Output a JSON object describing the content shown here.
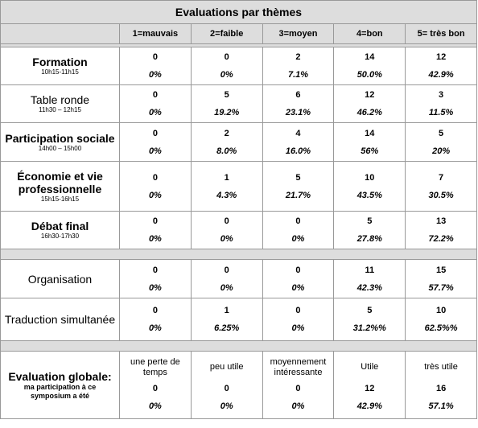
{
  "table": {
    "title": "Evaluations par thèmes",
    "columns": [
      "1=mauvais",
      "2=faible",
      "3=moyen",
      "4=bon",
      "5= très bon"
    ],
    "sessions": [
      {
        "label": "Formation",
        "time": "10h15-11h15",
        "counts": [
          0,
          0,
          2,
          14,
          12
        ],
        "percents": [
          "0%",
          "0%",
          "7.1%",
          "50.0%",
          "42.9%"
        ]
      },
      {
        "label": "Table ronde",
        "time": "11h30 – 12h15",
        "counts": [
          0,
          5,
          6,
          12,
          3
        ],
        "percents": [
          "0%",
          "19.2%",
          "23.1%",
          "46.2%",
          "11.5%"
        ]
      },
      {
        "label": "Participation sociale",
        "time": "14h00 – 15h00",
        "counts": [
          0,
          2,
          4,
          14,
          5
        ],
        "percents": [
          "0%",
          "8.0%",
          "16.0%",
          "56%",
          "20%"
        ]
      },
      {
        "label": "Économie et vie professionnelle",
        "time": "15h15-16h15",
        "counts": [
          0,
          1,
          5,
          10,
          7
        ],
        "percents": [
          "0%",
          "4.3%",
          "21.7%",
          "43.5%",
          "30.5%"
        ]
      },
      {
        "label": "Débat final",
        "time": "16h30-17h30",
        "counts": [
          0,
          0,
          0,
          5,
          13
        ],
        "percents": [
          "0%",
          "0%",
          "0%",
          "27.8%",
          "72.2%"
        ]
      }
    ],
    "services": [
      {
        "label": "Organisation",
        "counts": [
          0,
          0,
          0,
          11,
          15
        ],
        "percents": [
          "0%",
          "0%",
          "0%",
          "42.3%",
          "57.7%"
        ]
      },
      {
        "label": "Traduction simultanée",
        "counts": [
          0,
          1,
          0,
          5,
          10
        ],
        "percents": [
          "0%",
          "6.25%",
          "0%",
          "31.2%%",
          "62.5%%"
        ]
      }
    ],
    "global": {
      "label": "Evaluation globale:",
      "sublabel": "ma participation à ce symposium a été",
      "answers": [
        "une perte de temps",
        "peu utile",
        "moyennement intéressante",
        "Utile",
        "très utile"
      ],
      "counts": [
        0,
        0,
        0,
        12,
        16
      ],
      "percents": [
        "0%",
        "0%",
        "0%",
        "42.9%",
        "57.1%"
      ]
    }
  }
}
